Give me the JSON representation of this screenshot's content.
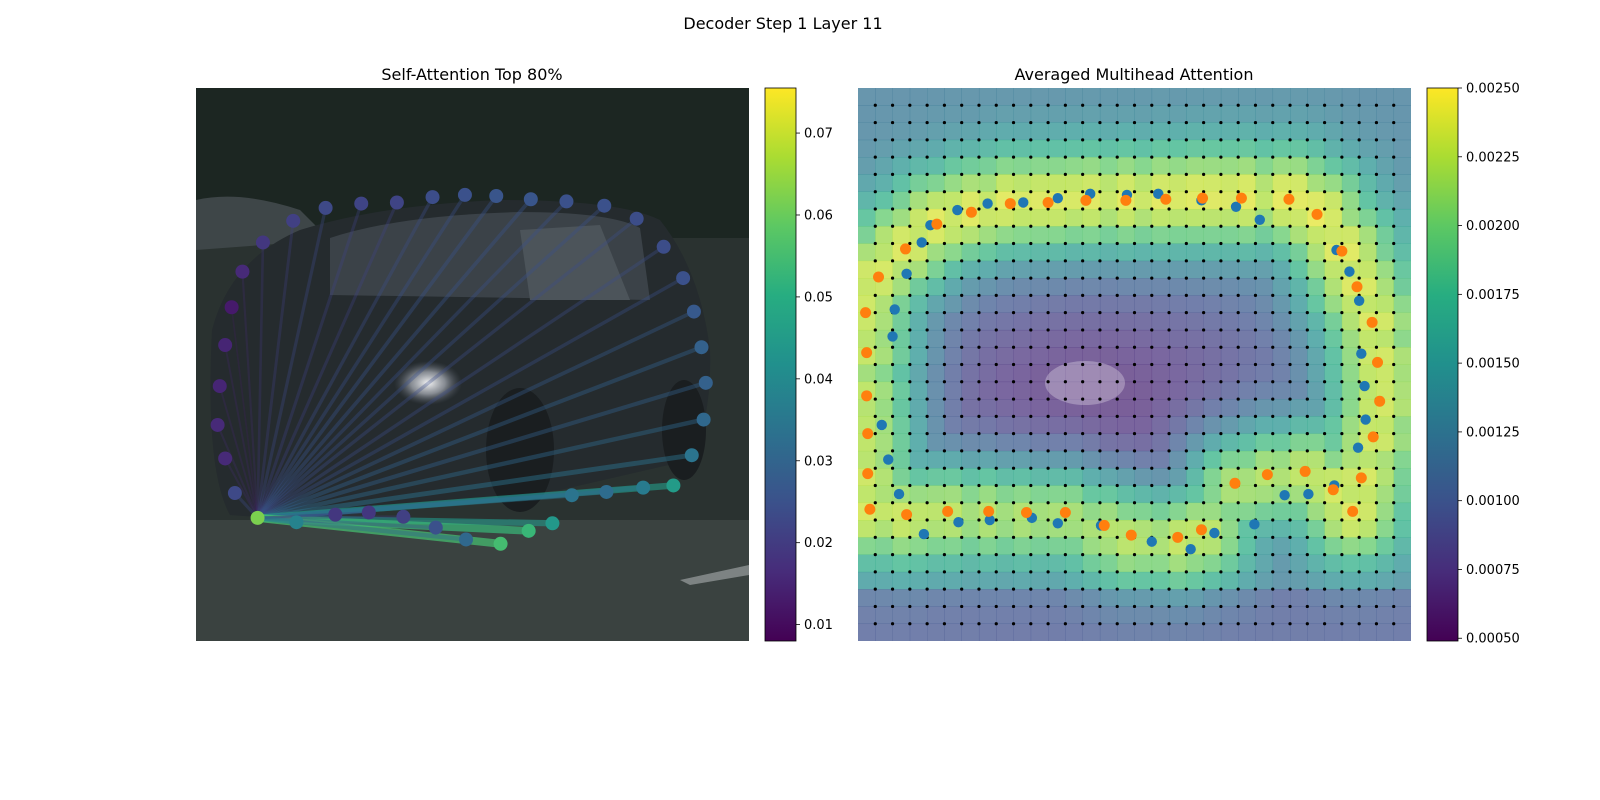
{
  "figure": {
    "title": "Decoder Step 1 Layer 11"
  },
  "chart_data": [
    {
      "type": "scatter",
      "title": "Self-Attention Top 80%",
      "description_points": "polygon vertices over image (pixel-space image coordinates 0-512), each colored by attention weight",
      "xlim": [
        0,
        512
      ],
      "ylim": [
        512,
        0
      ],
      "source_point": [
        57,
        398
      ],
      "points": [
        [
          36,
          375
        ],
        [
          27,
          343
        ],
        [
          20,
          312
        ],
        [
          22,
          276
        ],
        [
          27,
          238
        ],
        [
          33,
          203
        ],
        [
          43,
          170
        ],
        [
          62,
          143
        ],
        [
          90,
          123
        ],
        [
          120,
          111
        ],
        [
          153,
          107
        ],
        [
          186,
          106
        ],
        [
          219,
          101
        ],
        [
          249,
          99
        ],
        [
          278,
          100
        ],
        [
          310,
          103
        ],
        [
          343,
          105
        ],
        [
          378,
          109
        ],
        [
          408,
          121
        ],
        [
          433,
          147
        ],
        [
          451,
          176
        ],
        [
          461,
          207
        ],
        [
          468,
          240
        ],
        [
          472,
          273
        ],
        [
          470,
          307
        ],
        [
          459,
          340
        ],
        [
          442,
          368
        ],
        [
          414,
          370
        ],
        [
          380,
          374
        ],
        [
          348,
          377
        ],
        [
          330,
          403
        ],
        [
          308,
          410
        ],
        [
          282,
          422
        ],
        [
          250,
          418
        ],
        [
          222,
          407
        ],
        [
          192,
          397
        ],
        [
          160,
          393
        ],
        [
          129,
          395
        ],
        [
          93,
          402
        ]
      ],
      "weights": [
        0.023,
        0.016,
        0.016,
        0.015,
        0.015,
        0.013,
        0.016,
        0.019,
        0.021,
        0.023,
        0.022,
        0.022,
        0.024,
        0.025,
        0.026,
        0.026,
        0.025,
        0.025,
        0.024,
        0.024,
        0.025,
        0.027,
        0.029,
        0.029,
        0.031,
        0.034,
        0.045,
        0.036,
        0.032,
        0.034,
        0.044,
        0.053,
        0.055,
        0.031,
        0.025,
        0.021,
        0.019,
        0.019,
        0.038
      ],
      "source_weight": 0.062,
      "colorbar": {
        "min": 0.008,
        "max": 0.0755,
        "ticks": [
          "0.01",
          "0.02",
          "0.03",
          "0.04",
          "0.05",
          "0.06",
          "0.07"
        ],
        "tick_values": [
          0.01,
          0.02,
          0.03,
          0.04,
          0.05,
          0.06,
          0.07
        ]
      }
    },
    {
      "type": "heatmap",
      "title": "Averaged Multihead Attention",
      "xlim": [
        0,
        512
      ],
      "ylim": [
        512,
        0
      ],
      "grid_cells": 32,
      "pred_points_blue": [
        [
          67,
          127
        ],
        [
          92,
          113
        ],
        [
          120,
          107
        ],
        [
          153,
          106
        ],
        [
          185,
          102
        ],
        [
          215,
          98
        ],
        [
          249,
          99
        ],
        [
          278,
          98
        ],
        [
          318,
          104
        ],
        [
          350,
          110
        ],
        [
          372,
          122
        ],
        [
          443,
          150
        ],
        [
          455,
          170
        ],
        [
          464,
          197
        ],
        [
          466,
          246
        ],
        [
          469,
          276
        ],
        [
          470,
          307
        ],
        [
          463,
          333
        ],
        [
          441,
          368
        ],
        [
          417,
          376
        ],
        [
          395,
          377
        ],
        [
          367,
          404
        ],
        [
          330,
          412
        ],
        [
          308,
          427
        ],
        [
          272,
          420
        ],
        [
          225,
          405
        ],
        [
          185,
          403
        ],
        [
          161,
          398
        ],
        [
          122,
          400
        ],
        [
          93,
          402
        ],
        [
          61,
          413
        ],
        [
          38,
          376
        ],
        [
          28,
          344
        ],
        [
          22,
          312
        ],
        [
          32,
          230
        ],
        [
          34,
          205
        ],
        [
          45,
          172
        ],
        [
          59,
          143
        ]
      ],
      "pred_points_orange": [
        [
          7,
          208
        ],
        [
          19,
          175
        ],
        [
          44,
          149
        ],
        [
          73,
          126
        ],
        [
          105,
          115
        ],
        [
          141,
          107
        ],
        [
          176,
          106
        ],
        [
          211,
          104
        ],
        [
          248,
          104
        ],
        [
          285,
          103
        ],
        [
          319,
          102
        ],
        [
          355,
          102
        ],
        [
          399,
          103
        ],
        [
          425,
          117
        ],
        [
          448,
          151
        ],
        [
          462,
          184
        ],
        [
          476,
          217
        ],
        [
          481,
          254
        ],
        [
          483,
          290
        ],
        [
          477,
          323
        ],
        [
          466,
          361
        ],
        [
          458,
          392
        ],
        [
          440,
          372
        ],
        [
          414,
          355
        ],
        [
          379,
          358
        ],
        [
          349,
          366
        ],
        [
          318,
          409
        ],
        [
          296,
          416
        ],
        [
          253,
          414
        ],
        [
          228,
          405
        ],
        [
          192,
          393
        ],
        [
          156,
          393
        ],
        [
          121,
          392
        ],
        [
          83,
          392
        ],
        [
          45,
          395
        ],
        [
          11,
          390
        ],
        [
          9,
          357
        ],
        [
          9,
          320
        ],
        [
          8,
          285
        ],
        [
          8,
          245
        ]
      ],
      "colorbar": {
        "min": 0.00049,
        "max": 0.0025,
        "ticks": [
          "0.00050",
          "0.00075",
          "0.00100",
          "0.00125",
          "0.00150",
          "0.00175",
          "0.00200",
          "0.00225",
          "0.00250"
        ],
        "tick_values": [
          0.0005,
          0.00075,
          0.001,
          0.00125,
          0.0015,
          0.00175,
          0.002,
          0.00225,
          0.0025
        ]
      }
    }
  ],
  "colors": {
    "blue_points": "#1f77b4",
    "orange_points": "#ff7f0e",
    "grid_dots": "#000000"
  }
}
